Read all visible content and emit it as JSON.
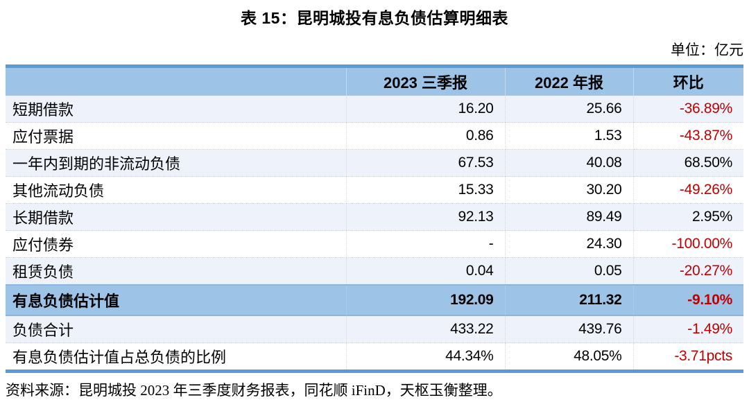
{
  "title": "表 15：昆明城投有息负债估算明细表",
  "unit_label": "单位：亿元",
  "table": {
    "columns": {
      "label": "",
      "c2023": "2023 三季报",
      "c2022": "2022 年报",
      "qoq": "环比"
    },
    "rows": [
      {
        "label": "短期借款",
        "v2023": "16.20",
        "v2022": "25.66",
        "qoq": "-36.89%"
      },
      {
        "label": "应付票据",
        "v2023": "0.86",
        "v2022": "1.53",
        "qoq": "-43.87%"
      },
      {
        "label": "一年内到期的非流动负债",
        "v2023": "67.53",
        "v2022": "40.08",
        "qoq": "68.50%"
      },
      {
        "label": "其他流动负债",
        "v2023": "15.33",
        "v2022": "30.20",
        "qoq": "-49.26%"
      },
      {
        "label": "长期借款",
        "v2023": "92.13",
        "v2022": "89.49",
        "qoq": "2.95%"
      },
      {
        "label": "应付债券",
        "v2023": "-",
        "v2022": "24.30",
        "qoq": "-100.00%"
      },
      {
        "label": "租赁负债",
        "v2023": "0.04",
        "v2022": "0.05",
        "qoq": "-20.27%"
      },
      {
        "label": "有息负债估计值",
        "v2023": "192.09",
        "v2022": "211.32",
        "qoq": "-9.10%"
      },
      {
        "label": "负债合计",
        "v2023": "433.22",
        "v2022": "439.76",
        "qoq": "-1.49%"
      },
      {
        "label": "有息负债估计值占总负债的比例",
        "v2023": "44.34%",
        "v2022": "48.05%",
        "qoq": "-3.71pcts"
      }
    ]
  },
  "source": "资料来源：昆明城投 2023 年三季度财务报表，同花顺 iFinD，天枢玉衡整理。",
  "colors": {
    "header_blue": "#9DC3E6",
    "border_blue": "#5B9BD5",
    "row_tint": "#EEF3FB",
    "negative_red": "#C00000"
  }
}
